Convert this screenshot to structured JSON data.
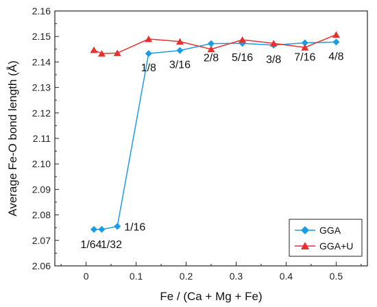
{
  "chart_data": {
    "type": "line",
    "title": "",
    "xlabel": "Fe / (Ca + Mg + Fe)",
    "ylabel": "Average Fe-O bond length (Å)",
    "xlim": [
      -0.0625,
      0.5625
    ],
    "ylim": [
      2.06,
      2.16
    ],
    "x_ticks": [
      0,
      0.1,
      0.2,
      0.3,
      0.4,
      0.5
    ],
    "x_tick_labels": [
      "0",
      "0.1",
      "0.2",
      "0.3",
      "0.4",
      "0.5"
    ],
    "y_ticks": [
      2.06,
      2.07,
      2.08,
      2.09,
      2.1,
      2.11,
      2.12,
      2.13,
      2.14,
      2.15,
      2.16
    ],
    "y_tick_labels": [
      "2.06",
      "2.07",
      "2.08",
      "2.09",
      "2.10",
      "2.11",
      "2.12",
      "2.13",
      "2.14",
      "2.15",
      "2.16"
    ],
    "grid": false,
    "legend_position": "bottom-right",
    "series": [
      {
        "name": "GGA",
        "color": "#1a9be6",
        "marker": "diamond",
        "x": [
          0.015625,
          0.03125,
          0.0625,
          0.125,
          0.1875,
          0.25,
          0.3125,
          0.375,
          0.4375,
          0.5
        ],
        "y": [
          2.0743,
          2.0743,
          2.0755,
          2.1433,
          2.1445,
          2.1472,
          2.1473,
          2.1466,
          2.1475,
          2.1478
        ]
      },
      {
        "name": "GGA+U",
        "color": "#e8312f",
        "marker": "triangle",
        "x": [
          0.015625,
          0.03125,
          0.0625,
          0.125,
          0.1875,
          0.25,
          0.3125,
          0.375,
          0.4375,
          0.5
        ],
        "y": [
          2.1447,
          2.1433,
          2.1435,
          2.149,
          2.148,
          2.145,
          2.1487,
          2.1473,
          2.1457,
          2.1507
        ]
      }
    ],
    "annotations": [
      {
        "text": "1/64",
        "x": 0.015625,
        "y": 2.0743,
        "anchor": "below-left"
      },
      {
        "text": "1/32",
        "x": 0.03125,
        "y": 2.0743,
        "anchor": "below-right"
      },
      {
        "text": "1/16",
        "x": 0.0625,
        "y": 2.0755,
        "anchor": "right"
      },
      {
        "text": "1/8",
        "x": 0.125,
        "y": 2.1433,
        "anchor": "below"
      },
      {
        "text": "3/16",
        "x": 0.1875,
        "y": 2.1445,
        "anchor": "below"
      },
      {
        "text": "2/8",
        "x": 0.25,
        "y": 2.1472,
        "anchor": "below"
      },
      {
        "text": "5/16",
        "x": 0.3125,
        "y": 2.1473,
        "anchor": "below"
      },
      {
        "text": "3/8",
        "x": 0.375,
        "y": 2.1466,
        "anchor": "below"
      },
      {
        "text": "7/16",
        "x": 0.4375,
        "y": 2.1475,
        "anchor": "below"
      },
      {
        "text": "4/8",
        "x": 0.5,
        "y": 2.1478,
        "anchor": "below"
      }
    ]
  }
}
